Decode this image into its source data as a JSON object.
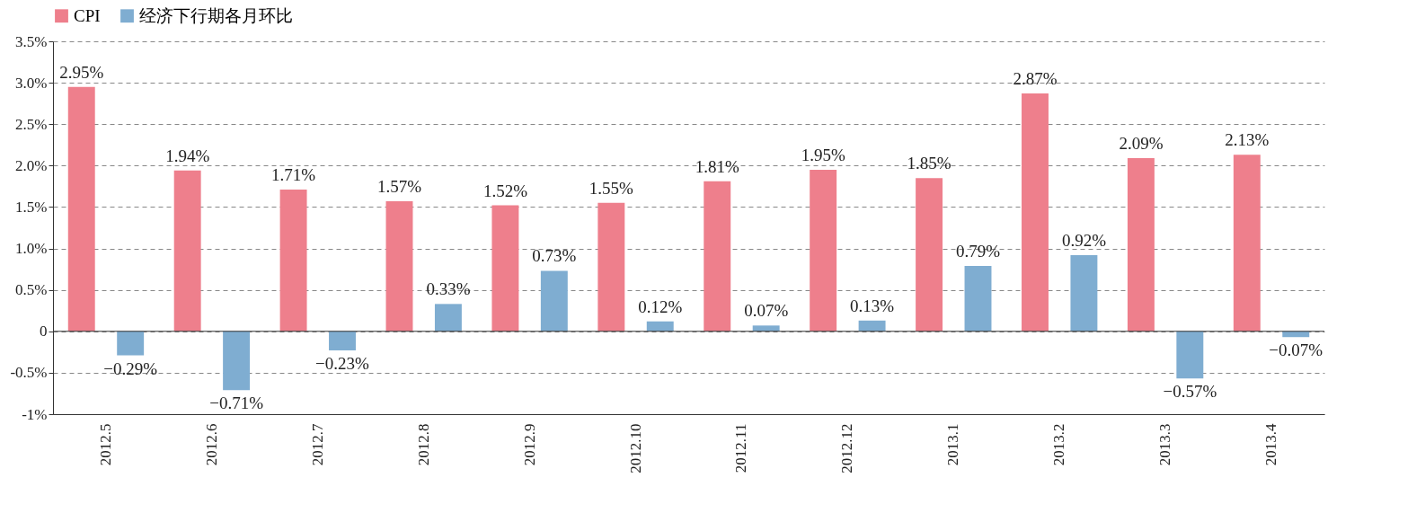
{
  "chart_data": {
    "type": "bar",
    "categories": [
      "2012.5",
      "2012.6",
      "2012.7",
      "2012.8",
      "2012.9",
      "2012.10",
      "2012.11",
      "2012.12",
      "2013.1",
      "2013.2",
      "2013.3",
      "2013.4"
    ],
    "series": [
      {
        "name": "CPI",
        "color": "#ee7f8c",
        "values": [
          2.95,
          1.94,
          1.71,
          1.57,
          1.52,
          1.55,
          1.81,
          1.95,
          1.85,
          2.87,
          2.09,
          2.13
        ],
        "value_labels": [
          "2.95%",
          "1.94%",
          "1.71%",
          "1.57%",
          "1.52%",
          "1.55%",
          "1.81%",
          "1.95%",
          "1.85%",
          "2.87%",
          "2.09%",
          "2.13%"
        ]
      },
      {
        "name": "经济下行期各月环比",
        "color": "#7fadd1",
        "values": [
          -0.29,
          -0.71,
          -0.23,
          0.33,
          0.73,
          0.12,
          0.07,
          0.13,
          0.79,
          0.92,
          -0.57,
          -0.07
        ],
        "value_labels": [
          "−0.29%",
          "−0.71%",
          "−0.23%",
          "0.33%",
          "0.73%",
          "0.12%",
          "0.07%",
          "0.13%",
          "0.79%",
          "0.92%",
          "−0.57%",
          "−0.07%"
        ]
      }
    ],
    "ylim": [
      -1,
      3.5
    ],
    "yticks": [
      {
        "value": -1,
        "label": "-1%"
      },
      {
        "value": -0.5,
        "label": "-0.5%"
      },
      0,
      {
        "value": 0.5,
        "label": "0.5%"
      },
      {
        "value": 1,
        "label": "1.0%"
      },
      {
        "value": 1.5,
        "label": "1.5%"
      },
      {
        "value": 2,
        "label": "2.0%"
      },
      {
        "value": 2.5,
        "label": "2.5%"
      },
      {
        "value": 3,
        "label": "3.0%"
      },
      {
        "value": 3.5,
        "label": "3.5%"
      }
    ],
    "grid": "y",
    "legend": "top"
  }
}
